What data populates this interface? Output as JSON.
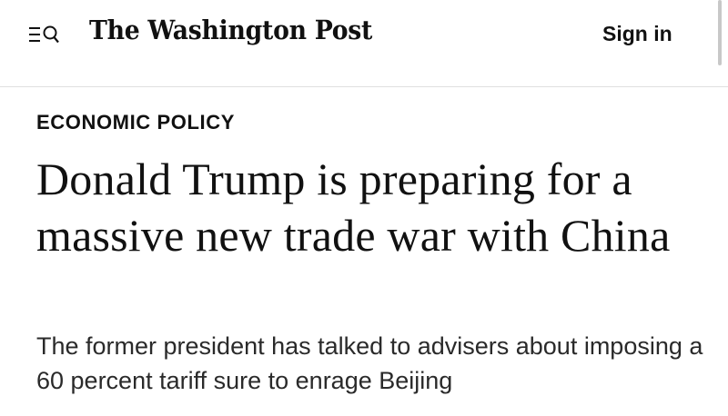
{
  "header": {
    "logo_text": "The Washington Post",
    "signin_label": "Sign in",
    "menu_icon": "menu-search-icon"
  },
  "article": {
    "kicker": "ECONOMIC POLICY",
    "headline": "Donald Trump is preparing for a massive new trade war with China",
    "dek": "The former president has talked to advisers about imposing a 60 percent tariff sure to enrage Beijing"
  }
}
